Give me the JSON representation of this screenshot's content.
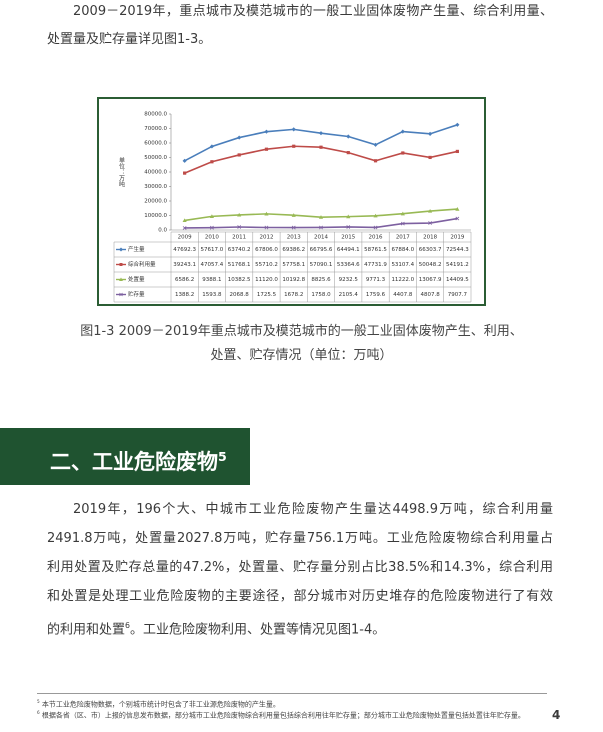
{
  "intro_lines": [
    "2009－2019年，重点城市及模范城市的一般工业固体废物产生量、综合利用量、",
    "处置量及贮存量详见图1-3。"
  ],
  "chart_data": {
    "type": "line",
    "ylabel": "单位：万吨",
    "categories": [
      "2009",
      "2010",
      "2011",
      "2012",
      "2013",
      "2014",
      "2015",
      "2016",
      "2017",
      "2018",
      "2019"
    ],
    "ylim": [
      0,
      80000
    ],
    "yticks": [
      {
        "value": 0,
        "label": "0.0"
      },
      {
        "value": 10000,
        "label": "10000.0"
      },
      {
        "value": 20000,
        "label": "20000.0"
      },
      {
        "value": 30000,
        "label": "30000.0"
      },
      {
        "value": 40000,
        "label": "40000.0"
      },
      {
        "value": 50000,
        "label": "50000.0"
      },
      {
        "value": 60000,
        "label": "60000.0"
      },
      {
        "value": 70000,
        "label": "70000.0"
      },
      {
        "value": 80000,
        "label": "80000.0"
      }
    ],
    "grid": false,
    "series": [
      {
        "name": "产生量",
        "color": "#4a7ebb",
        "marker": "diamond",
        "values": [
          47692.3,
          57617.0,
          63740.2,
          67806.0,
          69386.2,
          66795.6,
          64494.1,
          58761.5,
          67884.0,
          66303.7,
          72544.3
        ],
        "value_labels": [
          "47692.3",
          "57617.0",
          "63740.2",
          "67806.0",
          "69386.2",
          "66795.6",
          "64494.1",
          "58761.5",
          "67884.0",
          "66303.7",
          "72544.3"
        ]
      },
      {
        "name": "综合利用量",
        "color": "#be4b48",
        "marker": "square",
        "values": [
          39243.1,
          47057.4,
          51768.1,
          55710.2,
          57758.1,
          57090.1,
          53364.6,
          47731.9,
          53107.4,
          50048.2,
          54191.2
        ],
        "value_labels": [
          "39243.1",
          "47057.4",
          "51768.1",
          "55710.2",
          "57758.1",
          "57090.1",
          "53364.6",
          "47731.9",
          "53107.4",
          "50048.2",
          "54191.2"
        ]
      },
      {
        "name": "处置量",
        "color": "#98b954",
        "marker": "triangle",
        "values": [
          6586.2,
          9388.1,
          10382.5,
          11120.0,
          10192.8,
          8825.6,
          9232.5,
          9771.3,
          11222.0,
          13067.9,
          14409.5
        ],
        "value_labels": [
          "6586.2",
          "9388.1",
          "10382.5",
          "11120.0",
          "10192.8",
          "8825.6",
          "9232.5",
          "9771.3",
          "11222.0",
          "13067.9",
          "14409.5"
        ]
      },
      {
        "name": "贮存量",
        "color": "#7d60a0",
        "marker": "x",
        "values": [
          1388.2,
          1593.8,
          2068.8,
          1725.5,
          1678.2,
          1758.0,
          2105.4,
          1759.6,
          4407.8,
          4807.8,
          7907.7
        ],
        "value_labels": [
          "1388.2",
          "1593.8",
          "2068.8",
          "1725.5",
          "1678.2",
          "1758.0",
          "2105.4",
          "1759.6",
          "4407.8",
          "4807.8",
          "7907.7"
        ]
      }
    ]
  },
  "caption_lines": [
    "图1-3 2009－2019年重点城市及模范城市的一般工业固体废物产生、利用、",
    "处置、贮存情况（单位：万吨）"
  ],
  "section": {
    "title": "二、工业危险废物",
    "sup": "5"
  },
  "body": {
    "lines": [
      "2019年，196个大、中城市工业危险废物产生量达4498.9万吨，综合利用量",
      "2491.8万吨，处置量2027.8万吨，贮存量756.1万吨。工业危险废物综合利用量占",
      "利用处置及贮存总量的47.2%，处置量、贮存量分别占比38.5%和14.3%，综合利用",
      "和处置是处理工业危险废物的主要途径，部分城市对历史堆存的危险废物进行了有效"
    ],
    "last_line": {
      "before": "的利用和处置",
      "sup": "6",
      "after": "。工业危险废物利用、处置等情况见图1-4。"
    }
  },
  "footnotes": [
    {
      "mark": "5",
      "text": "本节工业危险废物数据，个别城市统计时包含了非工业源危险废物的产生量。"
    },
    {
      "mark": "6",
      "text": "根据各省（区、市）上报的信息发布数据，部分城市工业危险废物综合利用量包括综合利用往年贮存量；部分城市工业危险废物处置量包括处置往年贮存量。"
    }
  ],
  "page_number": 4
}
